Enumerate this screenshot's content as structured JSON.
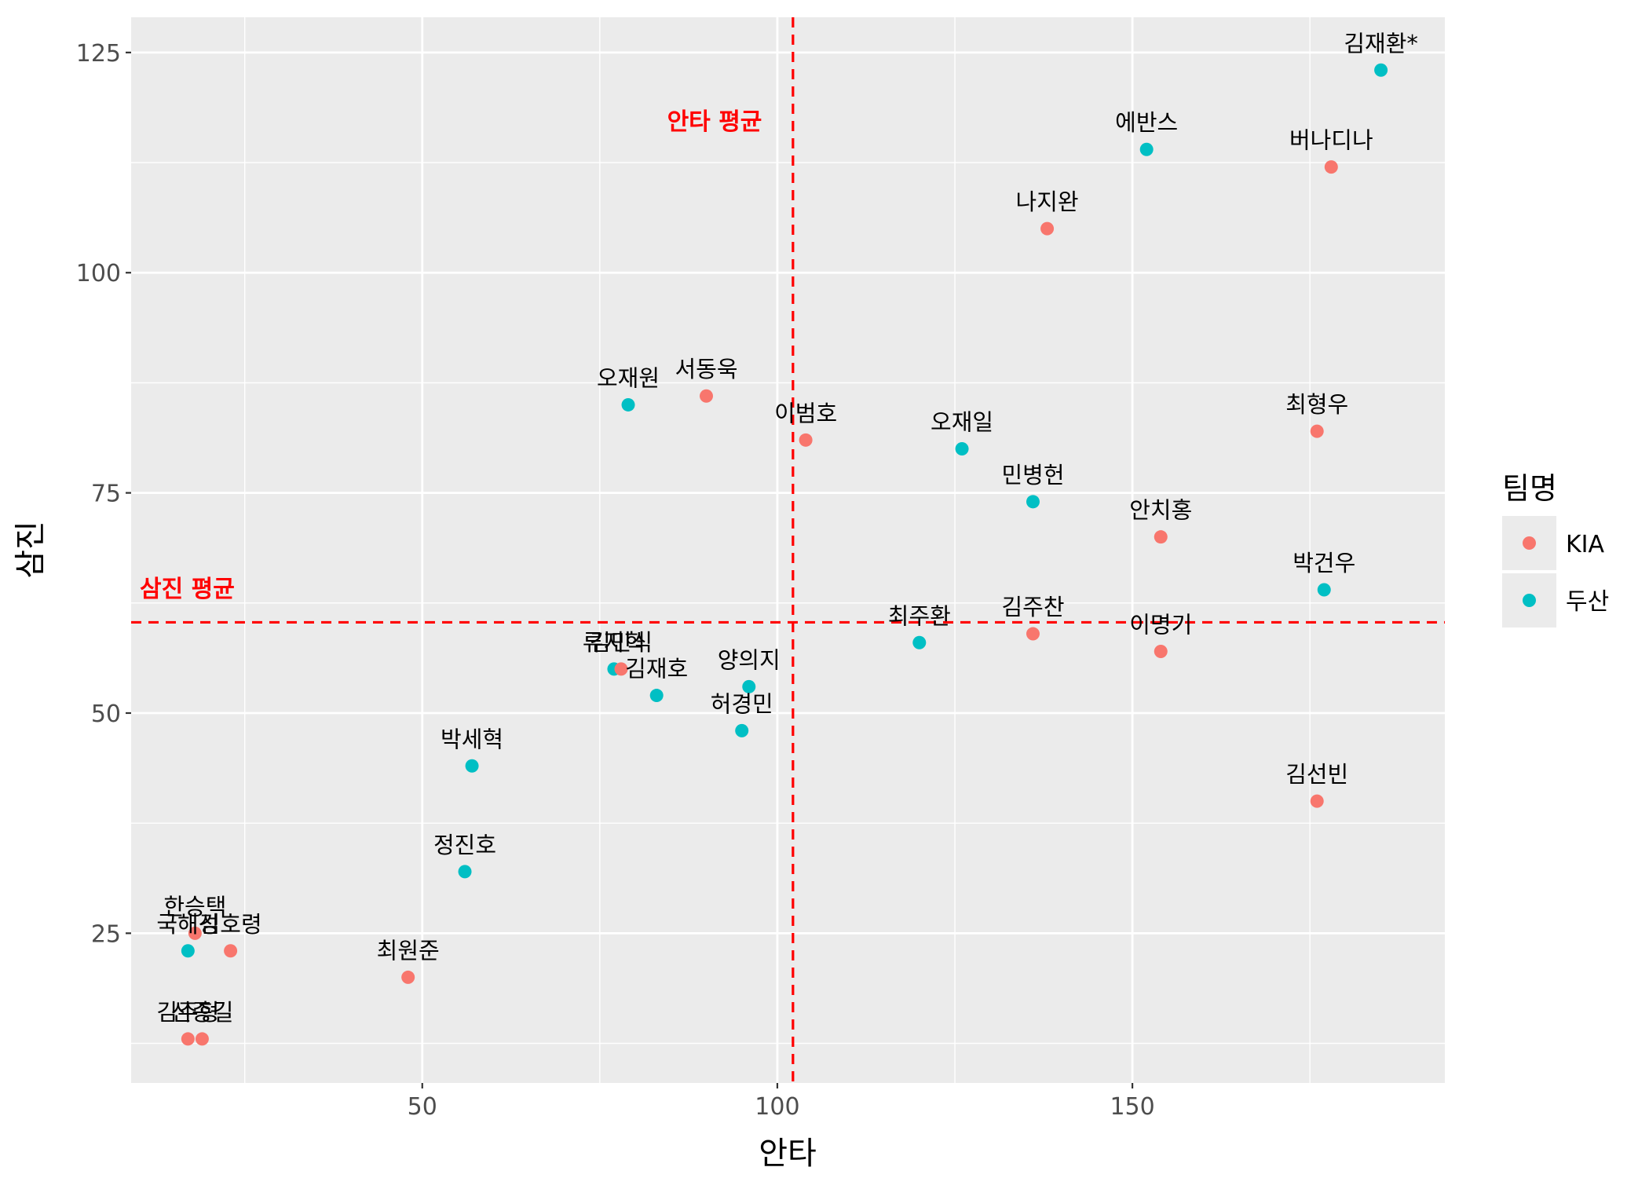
{
  "chart_data": {
    "type": "scatter",
    "xlabel": "안타",
    "ylabel": "삼진",
    "xlim": [
      9,
      194
    ],
    "ylim": [
      8,
      129
    ],
    "x_ticks": [
      50,
      100,
      150
    ],
    "y_ticks": [
      25,
      50,
      75,
      100,
      125
    ],
    "x_tick_labels": [
      "50",
      "100",
      "150"
    ],
    "y_tick_labels": [
      "25",
      "50",
      "75",
      "100",
      "125"
    ],
    "grid": true,
    "legend": {
      "title": "팀명",
      "position": "right",
      "items": [
        {
          "name": "KIA",
          "color": "#F8766D"
        },
        {
          "name": "두산",
          "color": "#00BFC4"
        }
      ]
    },
    "reference_lines": [
      {
        "orientation": "vertical",
        "value": 102.2,
        "color": "#FF0000",
        "dash": "dashed",
        "label": "안타 평균"
      },
      {
        "orientation": "horizontal",
        "value": 60.3,
        "color": "#FF0000",
        "dash": "dashed",
        "label": "삼진 평균"
      }
    ],
    "points": [
      {
        "name": "김재환*",
        "team": "두산",
        "x": 185,
        "y": 123
      },
      {
        "name": "에반스",
        "team": "두산",
        "x": 152,
        "y": 114
      },
      {
        "name": "버나디나",
        "team": "KIA",
        "x": 178,
        "y": 112
      },
      {
        "name": "나지완",
        "team": "KIA",
        "x": 138,
        "y": 105
      },
      {
        "name": "서동욱",
        "team": "KIA",
        "x": 90,
        "y": 86
      },
      {
        "name": "오재원",
        "team": "두산",
        "x": 79,
        "y": 85
      },
      {
        "name": "최형우",
        "team": "KIA",
        "x": 176,
        "y": 82
      },
      {
        "name": "이범호",
        "team": "KIA",
        "x": 104,
        "y": 81
      },
      {
        "name": "오재일",
        "team": "두산",
        "x": 126,
        "y": 80
      },
      {
        "name": "민병헌",
        "team": "두산",
        "x": 136,
        "y": 74
      },
      {
        "name": "안치홍",
        "team": "KIA",
        "x": 154,
        "y": 70
      },
      {
        "name": "박건우",
        "team": "두산",
        "x": 177,
        "y": 64
      },
      {
        "name": "최주환",
        "team": "두산",
        "x": 120,
        "y": 58
      },
      {
        "name": "김주찬",
        "team": "KIA",
        "x": 136,
        "y": 59
      },
      {
        "name": "이명기",
        "team": "KIA",
        "x": 154,
        "y": 57
      },
      {
        "name": "류지혁",
        "team": "두산",
        "x": 77,
        "y": 55
      },
      {
        "name": "김민식",
        "team": "KIA",
        "x": 78,
        "y": 55
      },
      {
        "name": "김재호",
        "team": "두산",
        "x": 83,
        "y": 52
      },
      {
        "name": "양의지",
        "team": "두산",
        "x": 96,
        "y": 53
      },
      {
        "name": "허경민",
        "team": "두산",
        "x": 95,
        "y": 48
      },
      {
        "name": "박세혁",
        "team": "두산",
        "x": 57,
        "y": 44
      },
      {
        "name": "김선빈",
        "team": "KIA",
        "x": 176,
        "y": 40
      },
      {
        "name": "정진호",
        "team": "두산",
        "x": 56,
        "y": 32
      },
      {
        "name": "한승택",
        "team": "KIA",
        "x": 18,
        "y": 25
      },
      {
        "name": "국해성",
        "team": "두산",
        "x": 17,
        "y": 23
      },
      {
        "name": "김호령",
        "team": "KIA",
        "x": 23,
        "y": 23
      },
      {
        "name": "최원준",
        "team": "KIA",
        "x": 48,
        "y": 20
      },
      {
        "name": "김주형",
        "team": "KIA",
        "x": 17,
        "y": 13
      },
      {
        "name": "신종길",
        "team": "KIA",
        "x": 19,
        "y": 13
      }
    ]
  }
}
